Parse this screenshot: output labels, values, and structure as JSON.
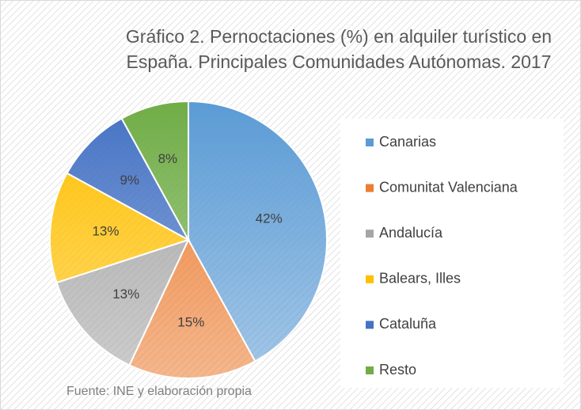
{
  "chart_data": {
    "type": "pie",
    "title": "Gráfico 2. Pernoctaciones (%) en alquiler turístico en España. Principales Comunidades Autónomas. 2017",
    "categories": [
      "Canarias",
      "Comunitat Valenciana",
      "Andalucía",
      "Balears, Illes",
      "Cataluña",
      "Resto"
    ],
    "values": [
      42,
      15,
      13,
      13,
      9,
      8
    ],
    "value_labels": [
      "42%",
      "15%",
      "13%",
      "13%",
      "9%",
      "8%"
    ],
    "colors": [
      "#5b9bd5",
      "#ed7d31",
      "#a5a5a5",
      "#ffc000",
      "#4472c4",
      "#70ad47"
    ],
    "legend": "right",
    "source": "Fuente: INE y elaboración propia"
  }
}
